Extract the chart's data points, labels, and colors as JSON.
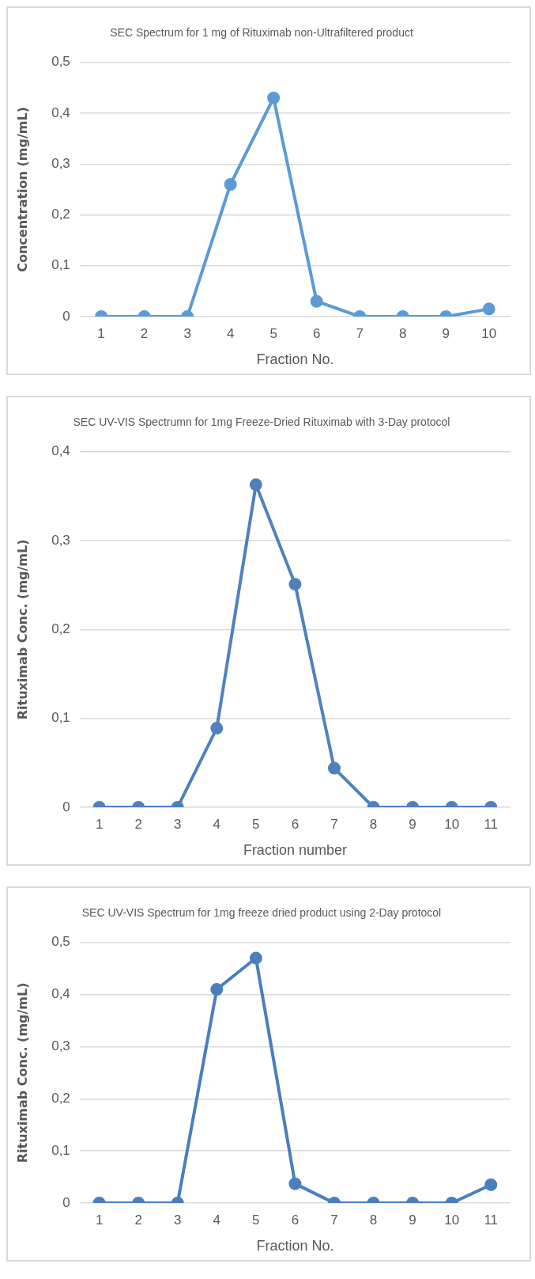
{
  "chart_data": [
    {
      "type": "line",
      "title": "SEC Spectrum for 1 mg of Rituximab non-Ultrafiltered product",
      "xlabel": "Fraction No.",
      "ylabel": "Concentration (mg/mL)",
      "categories": [
        "1",
        "2",
        "3",
        "4",
        "5",
        "6",
        "7",
        "8",
        "9",
        "10"
      ],
      "series": [
        {
          "color": "#5b9bd5",
          "values": [
            0,
            0,
            0,
            0.26,
            0.43,
            0.03,
            0,
            0,
            0,
            0.015
          ]
        }
      ],
      "ylim": [
        0,
        0.5
      ],
      "yticks": [
        {
          "value": 0,
          "label": "0"
        },
        {
          "value": 0.1,
          "label": "0,1"
        },
        {
          "value": 0.2,
          "label": "0,2"
        },
        {
          "value": 0.3,
          "label": "0,3"
        },
        {
          "value": 0.4,
          "label": "0,4"
        },
        {
          "value": 0.5,
          "label": "0,5"
        }
      ],
      "grid": "y",
      "marker": "circle",
      "line_style": "solid"
    },
    {
      "type": "line",
      "title": "SEC UV-VIS Spectrumn for 1mg Freeze-Dried Rituximab with 3-Day protocol",
      "xlabel": "Fraction number",
      "ylabel": "Rituximab Conc. (mg/mL)",
      "categories": [
        "1",
        "2",
        "3",
        "4",
        "5",
        "6",
        "7",
        "8",
        "9",
        "10",
        "11"
      ],
      "series": [
        {
          "color": "#4f81bd",
          "values": [
            0,
            0,
            0,
            0.089,
            0.363,
            0.251,
            0.044,
            0,
            0,
            0,
            0
          ]
        }
      ],
      "ylim": [
        0,
        0.4
      ],
      "yticks": [
        {
          "value": 0,
          "label": "0"
        },
        {
          "value": 0.1,
          "label": "0,1"
        },
        {
          "value": 0.2,
          "label": "0,2"
        },
        {
          "value": 0.3,
          "label": "0,3"
        },
        {
          "value": 0.4,
          "label": "0,4"
        }
      ],
      "grid": "y",
      "marker": "circle",
      "line_style": "solid"
    },
    {
      "type": "line",
      "title": "SEC UV-VIS Spectrum for 1mg freeze dried product using 2-Day protocol",
      "xlabel": "Fraction No.",
      "ylabel": "Rituximab Conc. (mg/mL)",
      "categories": [
        "1",
        "2",
        "3",
        "4",
        "5",
        "6",
        "7",
        "8",
        "9",
        "10",
        "11"
      ],
      "series": [
        {
          "color": "#4a7ebd",
          "values": [
            0,
            0,
            0,
            0.41,
            0.47,
            0.037,
            0,
            0,
            0,
            0,
            0.035
          ]
        }
      ],
      "ylim": [
        0,
        0.5
      ],
      "yticks": [
        {
          "value": 0,
          "label": "0"
        },
        {
          "value": 0.1,
          "label": "0,1"
        },
        {
          "value": 0.2,
          "label": "0,2"
        },
        {
          "value": 0.3,
          "label": "0,3"
        },
        {
          "value": 0.4,
          "label": "0,4"
        },
        {
          "value": 0.5,
          "label": "0,5"
        }
      ],
      "grid": "y",
      "marker": "circle",
      "line_style": "solid"
    }
  ]
}
